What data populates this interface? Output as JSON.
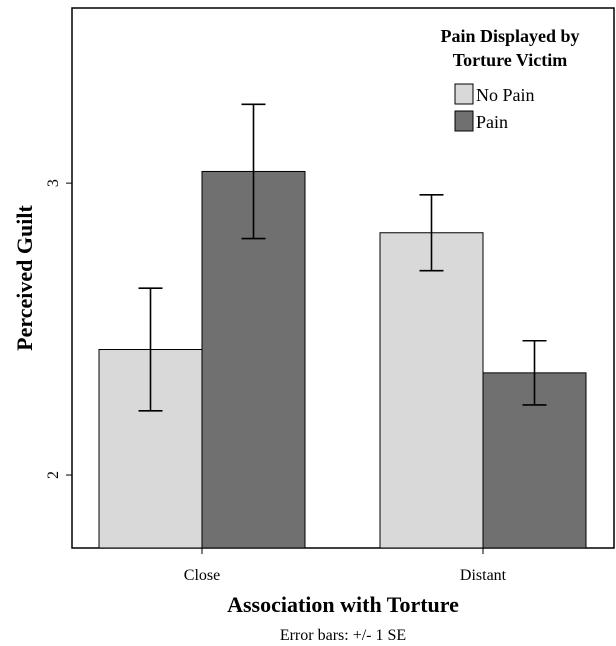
{
  "chart_data": {
    "type": "bar",
    "categories": [
      "Close",
      "Distant"
    ],
    "series": [
      {
        "name": "No Pain",
        "values": [
          2.43,
          2.83
        ],
        "error": [
          0.21,
          0.13
        ],
        "color": "#d9d9d9"
      },
      {
        "name": "Pain",
        "values": [
          3.04,
          2.35
        ],
        "error": [
          0.23,
          0.11
        ],
        "color": "#707070"
      }
    ],
    "xlabel": "Association with Torture",
    "ylabel": "Perceived Guilt",
    "yticks": [
      2,
      3
    ],
    "ylim": [
      1.75,
      3.6
    ],
    "legend": {
      "title_line1": "Pain Displayed by",
      "title_line2": "Torture Victim",
      "placement": "top-right"
    },
    "note": "Error bars: +/- 1 SE",
    "grid": false
  }
}
